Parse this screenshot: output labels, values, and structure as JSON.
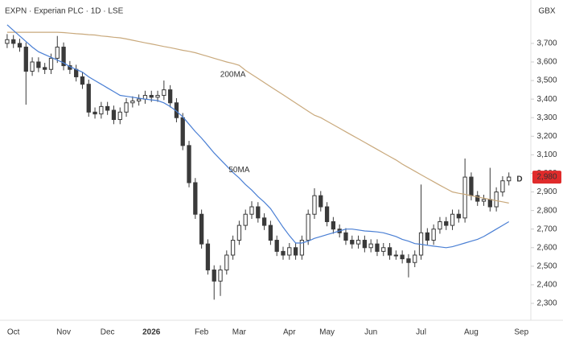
{
  "chart_data": {
    "type": "candlestick",
    "title": "EXPN · Experian PLC · 1D · LSE",
    "currency": "GBX",
    "marker": "D",
    "last_price": {
      "value": 2980,
      "label": "2,980"
    },
    "last_price_color": "#e02b2b",
    "marker_color": "#f0a030",
    "candle_color": "#3a3a3a",
    "categories": [
      null,
      "Oct",
      null,
      null,
      null,
      null,
      null,
      null,
      null,
      "Nov",
      null,
      null,
      null,
      null,
      null,
      null,
      "Dec",
      null,
      null,
      null,
      null,
      null,
      null,
      "2026",
      null,
      null,
      null,
      null,
      null,
      null,
      null,
      "Feb",
      null,
      null,
      null,
      null,
      null,
      "Mar",
      null,
      null,
      null,
      null,
      null,
      null,
      null,
      "Apr",
      null,
      null,
      null,
      null,
      null,
      "May",
      null,
      null,
      null,
      null,
      null,
      null,
      "Jun",
      null,
      null,
      null,
      null,
      null,
      null,
      null,
      "Jul",
      null,
      null,
      null,
      null,
      null,
      null,
      null,
      "Aug",
      null,
      null,
      null,
      null,
      null,
      null,
      null,
      "Sep",
      null
    ],
    "candles": {
      "open": [
        3700,
        3720,
        3700,
        3680,
        3550,
        3600,
        3570,
        3560,
        3620,
        3680,
        3580,
        3560,
        3520,
        3480,
        3330,
        3320,
        3360,
        3340,
        3290,
        3330,
        3380,
        3390,
        3400,
        3420,
        3410,
        3420,
        3450,
        3380,
        3300,
        3150,
        2950,
        2780,
        2620,
        2480,
        2420,
        2480,
        2560,
        2640,
        2720,
        2780,
        2820,
        2760,
        2720,
        2640,
        2580,
        2560,
        2600,
        2560,
        2640,
        2780,
        2880,
        2820,
        2740,
        2700,
        2680,
        2640,
        2620,
        2640,
        2600,
        2620,
        2580,
        2600,
        2560,
        2560,
        2540,
        2520,
        2560,
        2680,
        2640,
        2700,
        2740,
        2720,
        2780,
        2760,
        2980,
        2880,
        2850,
        2860,
        2820,
        2900,
        2960,
        null,
        null,
        null
      ],
      "high": [
        3750,
        3745,
        3725,
        3705,
        3625,
        3625,
        3595,
        3645,
        3740,
        3705,
        3605,
        3585,
        3545,
        3505,
        3355,
        3385,
        3385,
        3365,
        3355,
        3405,
        3415,
        3425,
        3445,
        3445,
        3445,
        3500,
        3475,
        3405,
        3325,
        3175,
        2975,
        2805,
        2645,
        2505,
        2505,
        2585,
        2665,
        2745,
        2805,
        2850,
        2845,
        2785,
        2745,
        2665,
        2605,
        2625,
        2625,
        2665,
        2805,
        2920,
        2905,
        2845,
        2765,
        2725,
        2705,
        2665,
        2665,
        2665,
        2645,
        2645,
        2625,
        2625,
        2585,
        2585,
        2565,
        2585,
        2940,
        2705,
        2725,
        2765,
        2765,
        2805,
        2805,
        3080,
        3005,
        2905,
        2885,
        3030,
        2925,
        2985,
        3005,
        null,
        null,
        null
      ],
      "low": [
        3675,
        3675,
        3655,
        3370,
        3525,
        3545,
        3535,
        3535,
        3595,
        3555,
        3535,
        3495,
        3455,
        3305,
        3295,
        3295,
        3315,
        3265,
        3265,
        3305,
        3355,
        3365,
        3375,
        3385,
        3385,
        3395,
        3355,
        3275,
        3125,
        2925,
        2755,
        2595,
        2455,
        2320,
        2340,
        2455,
        2535,
        2615,
        2695,
        2755,
        2735,
        2695,
        2615,
        2555,
        2535,
        2535,
        2535,
        2535,
        2615,
        2755,
        2795,
        2715,
        2675,
        2655,
        2615,
        2595,
        2595,
        2575,
        2575,
        2555,
        2555,
        2535,
        2535,
        2515,
        2440,
        2495,
        2535,
        2615,
        2615,
        2675,
        2695,
        2695,
        2735,
        2735,
        2855,
        2825,
        2825,
        2795,
        2795,
        2875,
        2935,
        null,
        null,
        null
      ],
      "close": [
        3720,
        3700,
        3680,
        3550,
        3600,
        3570,
        3560,
        3620,
        3680,
        3580,
        3560,
        3520,
        3480,
        3330,
        3320,
        3360,
        3340,
        3290,
        3330,
        3380,
        3390,
        3400,
        3420,
        3410,
        3420,
        3450,
        3380,
        3300,
        3150,
        2950,
        2780,
        2620,
        2480,
        2420,
        2480,
        2560,
        2640,
        2720,
        2780,
        2820,
        2760,
        2720,
        2640,
        2580,
        2560,
        2600,
        2560,
        2640,
        2780,
        2880,
        2820,
        2740,
        2700,
        2680,
        2640,
        2620,
        2640,
        2600,
        2620,
        2580,
        2600,
        2560,
        2560,
        2540,
        2520,
        2560,
        2680,
        2640,
        2700,
        2740,
        2720,
        2780,
        2760,
        2980,
        2880,
        2850,
        2860,
        2820,
        2900,
        2960,
        2980,
        null,
        null,
        null
      ]
    },
    "series": [
      {
        "name": "200MA",
        "color": "#c9a97c",
        "values": [
          3760,
          3760,
          3760,
          3760,
          3760,
          3760,
          3760,
          3760,
          3760,
          3758,
          3755,
          3752,
          3750,
          3747,
          3745,
          3740,
          3737,
          3733,
          3730,
          3724,
          3717,
          3710,
          3703,
          3697,
          3690,
          3683,
          3677,
          3670,
          3663,
          3657,
          3650,
          3640,
          3630,
          3620,
          3610,
          3600,
          3592,
          3582,
          3555,
          3533,
          3511,
          3489,
          3467,
          3445,
          3423,
          3401,
          3379,
          3357,
          3335,
          3313,
          3300,
          3281,
          3262,
          3243,
          3224,
          3205,
          3186,
          3167,
          3148,
          3129,
          3110,
          3091,
          3072,
          3050,
          3031,
          3012,
          2993,
          2974,
          2955,
          2936,
          2918,
          2900,
          2893,
          2887,
          2880,
          2873,
          2867,
          2860,
          2853,
          2847,
          2840,
          null,
          null,
          null
        ]
      },
      {
        "name": "50MA",
        "color": "#4a7fd4",
        "values": [
          3800,
          3770,
          3740,
          3710,
          3680,
          3655,
          3640,
          3625,
          3610,
          3595,
          3575,
          3560,
          3545,
          3520,
          3500,
          3480,
          3460,
          3440,
          3420,
          3415,
          3410,
          3405,
          3400,
          3396,
          3392,
          3380,
          3360,
          3335,
          3305,
          3265,
          3225,
          3190,
          3150,
          3110,
          3075,
          3040,
          3005,
          2975,
          2940,
          2910,
          2875,
          2845,
          2810,
          2760,
          2710,
          2665,
          2625,
          2625,
          2635,
          2650,
          2660,
          2670,
          2680,
          2690,
          2700,
          2700,
          2695,
          2690,
          2688,
          2685,
          2680,
          2670,
          2660,
          2645,
          2635,
          2622,
          2618,
          2613,
          2608,
          2604,
          2600,
          2605,
          2615,
          2625,
          2635,
          2645,
          2660,
          2680,
          2700,
          2720,
          2740,
          null,
          null,
          null
        ]
      }
    ],
    "ylim": [
      2222,
      3912
    ],
    "yticks": [
      {
        "value": 2300,
        "label": "2,300"
      },
      {
        "value": 2400,
        "label": "2,400"
      },
      {
        "value": 2500,
        "label": "2,500"
      },
      {
        "value": 2600,
        "label": "2,600"
      },
      {
        "value": 2700,
        "label": "2,700"
      },
      {
        "value": 2800,
        "label": "2,800"
      },
      {
        "value": 2900,
        "label": "2,900"
      },
      {
        "value": 3000,
        "label": "3,000"
      },
      {
        "value": 3100,
        "label": "3,100"
      },
      {
        "value": 3200,
        "label": "3,200"
      },
      {
        "value": 3300,
        "label": "3,300"
      },
      {
        "value": 3400,
        "label": "3,400"
      },
      {
        "value": 3500,
        "label": "3,500"
      },
      {
        "value": 3600,
        "label": "3,600"
      },
      {
        "value": 3700,
        "label": "3,700"
      }
    ],
    "grid": false
  }
}
